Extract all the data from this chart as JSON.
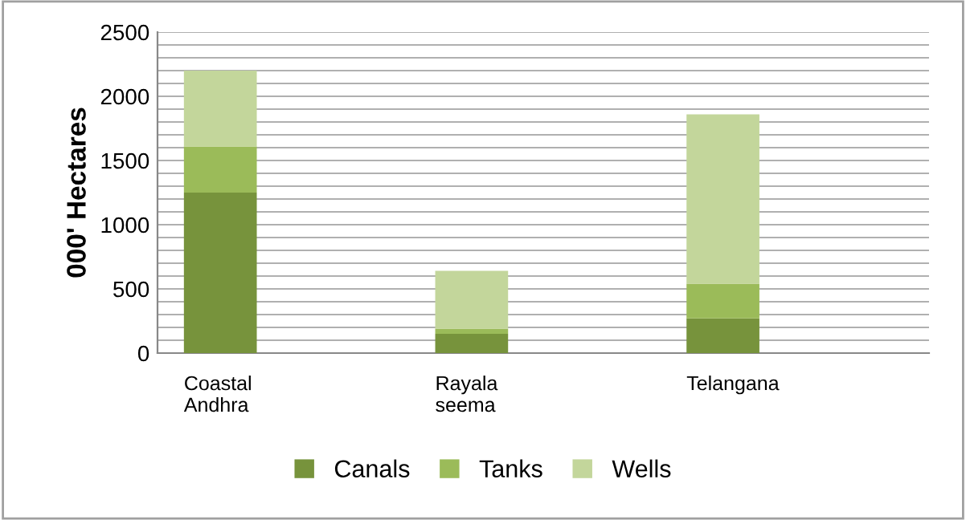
{
  "chart_data": {
    "type": "bar",
    "stacked": true,
    "ylabel": "000' Hectares",
    "categories": [
      "Coastal Andhra",
      "Rayala seema",
      "Telangana"
    ],
    "series": [
      {
        "name": "Canals",
        "color": "#77933c",
        "values": [
          1250,
          150,
          270
        ]
      },
      {
        "name": "Tanks",
        "color": "#9bbb59",
        "values": [
          360,
          40,
          270
        ]
      },
      {
        "name": "Wells",
        "color": "#c3d69b",
        "values": [
          590,
          450,
          1320
        ]
      }
    ],
    "ylim": [
      0,
      2500
    ],
    "yticks": [
      0,
      {
        "value": 100,
        "label": null
      },
      {
        "value": 200,
        "label": null
      },
      {
        "value": 300,
        "label": null
      },
      {
        "value": 400,
        "label": null
      },
      500,
      {
        "value": 600,
        "label": null
      },
      {
        "value": 700,
        "label": null
      },
      {
        "value": 800,
        "label": null
      },
      {
        "value": 900,
        "label": null
      },
      1000,
      {
        "value": 1100,
        "label": null
      },
      {
        "value": 1200,
        "label": null
      },
      {
        "value": 1300,
        "label": null
      },
      {
        "value": 1400,
        "label": null
      },
      1500,
      {
        "value": 1600,
        "label": null
      },
      {
        "value": 1700,
        "label": null
      },
      {
        "value": 1800,
        "label": null
      },
      {
        "value": 1900,
        "label": null
      },
      2000,
      {
        "value": 2100,
        "label": null
      },
      {
        "value": 2200,
        "label": null
      },
      {
        "value": 2300,
        "label": null
      },
      {
        "value": 2400,
        "label": null
      },
      2500
    ],
    "grid": "y",
    "legend": "bottom"
  }
}
